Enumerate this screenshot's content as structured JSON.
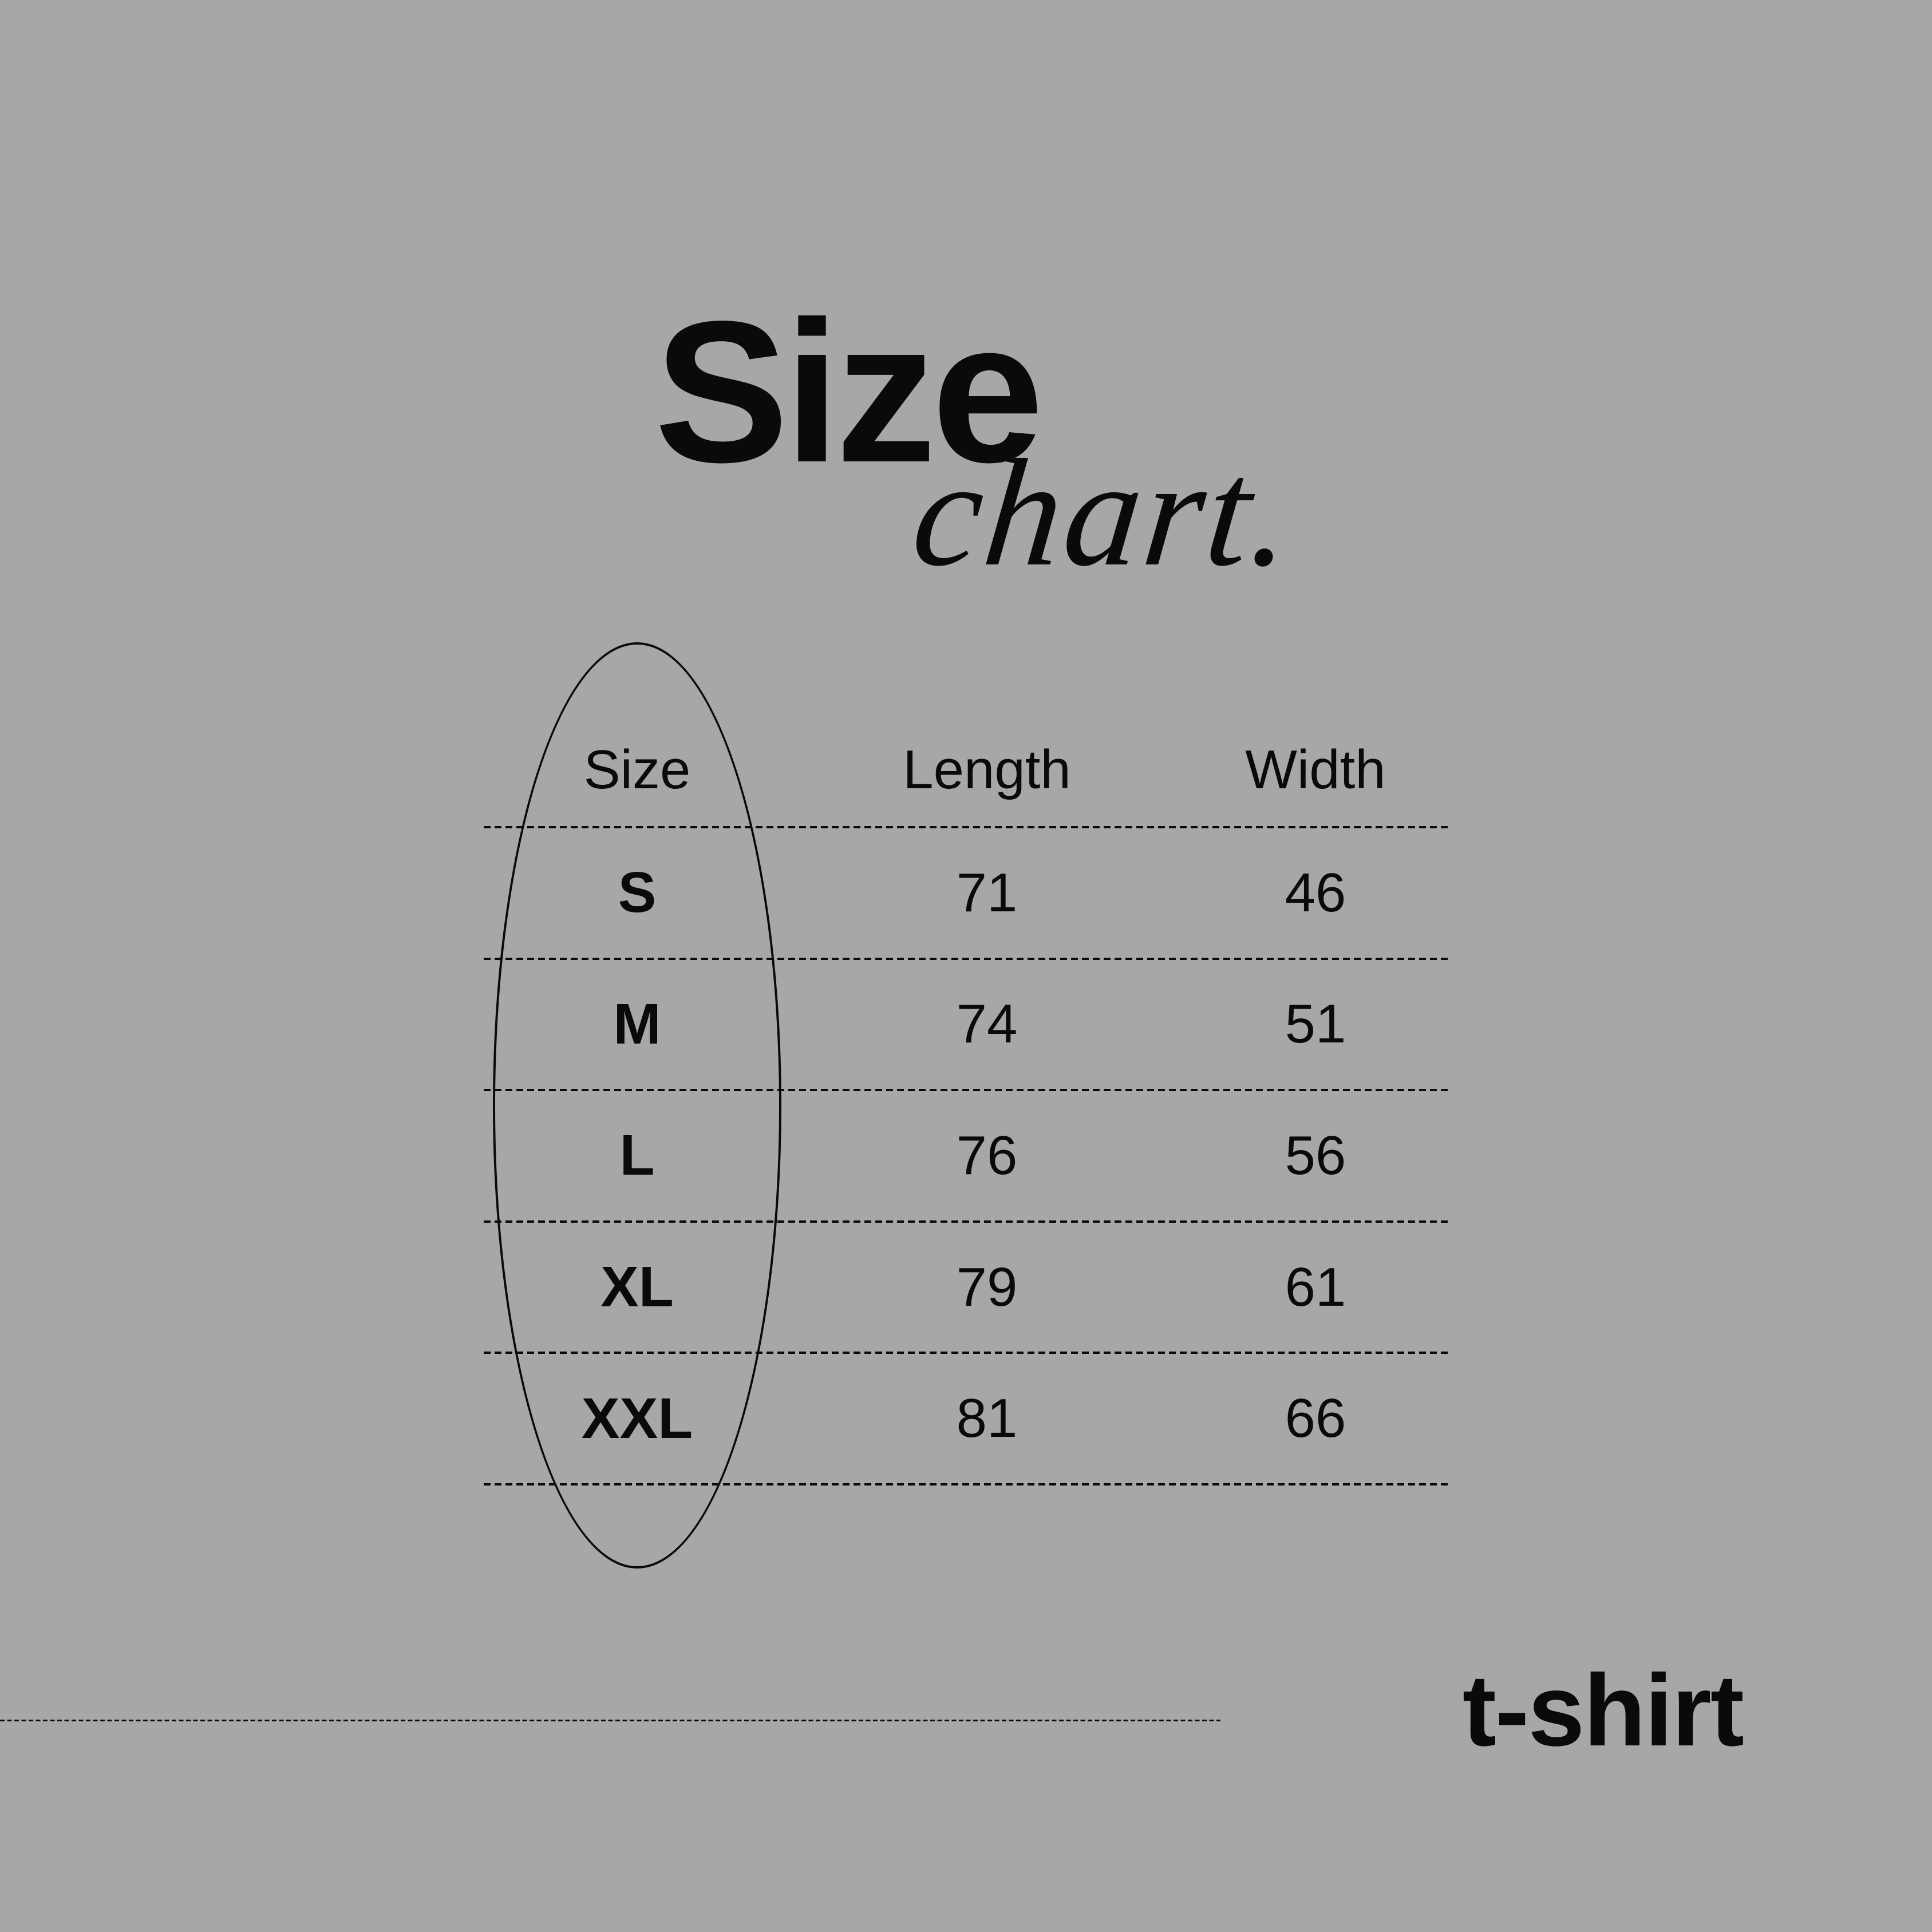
{
  "page": {
    "background_color": "#a7a7a7",
    "ink_color": "#0a0a0a"
  },
  "title": {
    "main": "Size",
    "script": "chart."
  },
  "table": {
    "headers": {
      "size": "Size",
      "length": "Length",
      "width": "Width"
    },
    "rows": [
      {
        "size": "S",
        "length": "71",
        "width": "46"
      },
      {
        "size": "M",
        "length": "74",
        "width": "51"
      },
      {
        "size": "L",
        "length": "76",
        "width": "56"
      },
      {
        "size": "XL",
        "length": "79",
        "width": "61"
      },
      {
        "size": "XXL",
        "length": "81",
        "width": "66"
      }
    ]
  },
  "annotation": {
    "ellipse_target": "Size column"
  },
  "footer": {
    "garment_label": "t-shirt"
  },
  "chart_data": {
    "type": "table",
    "title": "Size chart.",
    "columns": [
      "Size",
      "Length",
      "Width"
    ],
    "rows": [
      [
        "S",
        71,
        46
      ],
      [
        "M",
        74,
        51
      ],
      [
        "L",
        76,
        56
      ],
      [
        "XL",
        79,
        61
      ],
      [
        "XXL",
        81,
        66
      ]
    ],
    "annotations": [
      "hand-drawn ellipse circling the Size column",
      "t-shirt label bottom right"
    ]
  }
}
